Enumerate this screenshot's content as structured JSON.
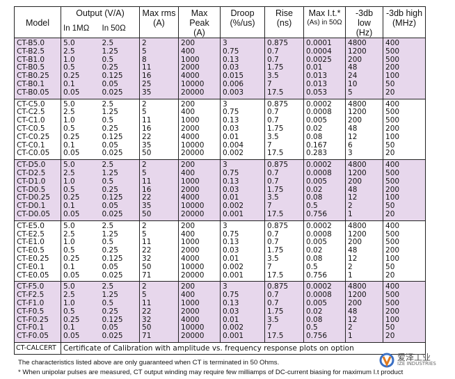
{
  "header": {
    "model": "Model",
    "output": "Output (V/A)",
    "in_1m": "In 1MΩ",
    "in_50": "In 50Ω",
    "max_rms": "Max rms",
    "max_rms_unit": "(A)",
    "max_peak": "Max Peak",
    "max_peak_unit": "(A)",
    "droop": "Droop",
    "droop_unit": "(%/us)",
    "rise": "Rise",
    "rise_unit": "(ns)",
    "max_it": "Max I.t.*",
    "max_it_unit": "(As) in 50Ω",
    "low": "-3db low",
    "low_unit": "(Hz)",
    "high": "-3db high",
    "high_unit": "(MHz)"
  },
  "groups": [
    {
      "rows": [
        [
          "CT-B5.0",
          "5.0",
          "2.5",
          "2",
          "200",
          "3",
          "0.875",
          "0.0001",
          "4800",
          "400"
        ],
        [
          "CT-B2.5",
          "2.5",
          "1.25",
          "5",
          "400",
          "0.75",
          "0.7",
          "0.0004",
          "1200",
          "500"
        ],
        [
          "CT-B1.0",
          "1.0",
          "0.5",
          "8",
          "1000",
          "0.13",
          "0.7",
          "0.0025",
          "200",
          "500"
        ],
        [
          "CT-B0.5",
          "0.5",
          "0.25",
          "11",
          "2000",
          "0.03",
          "1.75",
          "0.01",
          "48",
          "200"
        ],
        [
          "CT-B0.25",
          "0.25",
          "0.125",
          "16",
          "4000",
          "0.015",
          "3.5",
          "0.013",
          "24",
          "100"
        ],
        [
          "CT-B0.1",
          "0.1",
          "0.05",
          "25",
          "10000",
          "0.006",
          "7",
          "0.013",
          "10",
          "50"
        ],
        [
          "CT-B0.05",
          "0.05",
          "0.025",
          "35",
          "20000",
          "0.003",
          "17.5",
          "0.053",
          "5",
          "20"
        ]
      ]
    },
    {
      "rows": [
        [
          "CT-C5.0",
          "5.0",
          "2.5",
          "2",
          "200",
          "3",
          "0.875",
          "0.0002",
          "4800",
          "400"
        ],
        [
          "CT-C2.5",
          "2.5",
          "1.25",
          "5",
          "400",
          "0.75",
          "0.7",
          "0.0008",
          "1200",
          "500"
        ],
        [
          "CT-C1.0",
          "1.0",
          "0.5",
          "11",
          "1000",
          "0.13",
          "0.7",
          "0.005",
          "200",
          "500"
        ],
        [
          "CT-C0.5",
          "0.5",
          "0.25",
          "16",
          "2000",
          "0.03",
          "1.75",
          "0.02",
          "48",
          "200"
        ],
        [
          "CT-C0.25",
          "0.25",
          "0.125",
          "22",
          "4000",
          "0.01",
          "3.5",
          "0.08",
          "12",
          "100"
        ],
        [
          "CT-C0.1",
          "0.1",
          "0.05",
          "35",
          "10000",
          "0.004",
          "7",
          "0.167",
          "6",
          "50"
        ],
        [
          "CT-C0.05",
          "0.05",
          "0.025",
          "50",
          "20000",
          "0.002",
          "17.5",
          "0.283",
          "3",
          "20"
        ]
      ]
    },
    {
      "rows": [
        [
          "CT-D5.0",
          "5.0",
          "2.5",
          "2",
          "200",
          "3",
          "0.875",
          "0.0002",
          "4800",
          "400"
        ],
        [
          "CT-D2.5",
          "2.5",
          "1.25",
          "5",
          "400",
          "0.75",
          "0.7",
          "0.0008",
          "1200",
          "500"
        ],
        [
          "CT-D1.0",
          "1.0",
          "0.5",
          "11",
          "1000",
          "0.13",
          "0.7",
          "0.005",
          "200",
          "500"
        ],
        [
          "CT-D0.5",
          "0.5",
          "0.25",
          "16",
          "2000",
          "0.03",
          "1.75",
          "0.02",
          "48",
          "200"
        ],
        [
          "CT-D0.25",
          "0.25",
          "0.125",
          "22",
          "4000",
          "0.01",
          "3.5",
          "0.08",
          "12",
          "100"
        ],
        [
          "CT-D0.1",
          "0.1",
          "0.05",
          "35",
          "10000",
          "0.002",
          "7",
          "0.5",
          "2",
          "50"
        ],
        [
          "CT-D0.05",
          "0.05",
          "0.025",
          "50",
          "20000",
          "0.001",
          "17.5",
          "0.756",
          "1",
          "20"
        ]
      ]
    },
    {
      "rows": [
        [
          "CT-E5.0",
          "5.0",
          "2.5",
          "2",
          "200",
          "3",
          "0.875",
          "0.0002",
          "4800",
          "400"
        ],
        [
          "CT-E2.5",
          "2.5",
          "1.25",
          "5",
          "400",
          "0.75",
          "0.7",
          "0.0008",
          "1200",
          "500"
        ],
        [
          "CT-E1.0",
          "1.0",
          "0.5",
          "11",
          "1000",
          "0.13",
          "0.7",
          "0.005",
          "200",
          "500"
        ],
        [
          "CT-E0.5",
          "0.5",
          "0.25",
          "22",
          "2000",
          "0.03",
          "1.75",
          "0.02",
          "48",
          "200"
        ],
        [
          "CT-E0.25",
          "0.25",
          "0.125",
          "32",
          "4000",
          "0.01",
          "3.5",
          "0.08",
          "12",
          "100"
        ],
        [
          "CT-E0.1",
          "0.1",
          "0.05",
          "50",
          "10000",
          "0.002",
          "7",
          "0.5",
          "2",
          "50"
        ],
        [
          "CT-E0.05",
          "0.05",
          "0.025",
          "71",
          "20000",
          "0.001",
          "17.5",
          "0.756",
          "1",
          "20"
        ]
      ]
    },
    {
      "rows": [
        [
          "CT-F5.0",
          "5.0",
          "2.5",
          "2",
          "200",
          "3",
          "0.875",
          "0.0002",
          "4800",
          "400"
        ],
        [
          "CT-F2.5",
          "2.5",
          "1.25",
          "5",
          "400",
          "0.75",
          "0.7",
          "0.0008",
          "1200",
          "500"
        ],
        [
          "CT-F1.0",
          "1.0",
          "0.5",
          "11",
          "1000",
          "0.13",
          "0.7",
          "0.005",
          "200",
          "500"
        ],
        [
          "CT-F0.5",
          "0.5",
          "0.25",
          "22",
          "2000",
          "0.03",
          "1.75",
          "0.02",
          "48",
          "200"
        ],
        [
          "CT-F0.25",
          "0.25",
          "0.125",
          "32",
          "4000",
          "0.01",
          "3.5",
          "0.08",
          "12",
          "100"
        ],
        [
          "CT-F0.1",
          "0.1",
          "0.05",
          "50",
          "10000",
          "0.002",
          "7",
          "0.5",
          "2",
          "50"
        ],
        [
          "CT-F0.05",
          "0.05",
          "0.025",
          "71",
          "20000",
          "0.001",
          "17.5",
          "0.756",
          "1",
          "20"
        ]
      ]
    }
  ],
  "cert": {
    "model": "CT-CALCERT",
    "text": "Certificate of Calibration with amplitude vs. frequency response plots on option"
  },
  "notes": [
    "The characteristics listed above are only guaranteed when CT is terminated in 50 Ohms.",
    "* When unipolar pulses are measured, CT output winding may require few milliamps of DC-current biasing for maximum I.t product"
  ],
  "logo": {
    "name": "爱泽工业",
    "sub": "IZE INDUSTRIES"
  }
}
